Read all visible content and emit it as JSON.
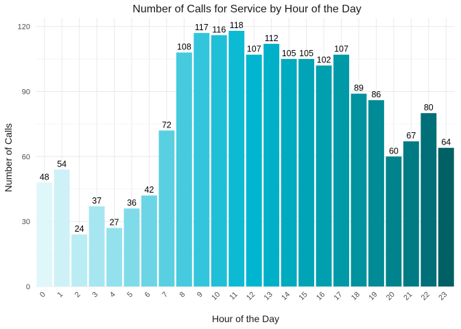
{
  "chart_data": {
    "type": "bar",
    "title": "Number of Calls for Service by Hour of the Day",
    "xlabel": "Hour of the Day",
    "ylabel": "Number of Calls",
    "categories": [
      "0",
      "1",
      "2",
      "3",
      "4",
      "5",
      "6",
      "7",
      "8",
      "9",
      "10",
      "11",
      "12",
      "13",
      "14",
      "15",
      "16",
      "17",
      "18",
      "19",
      "20",
      "21",
      "22",
      "23"
    ],
    "values": [
      48,
      54,
      24,
      37,
      27,
      36,
      42,
      72,
      108,
      117,
      116,
      118,
      107,
      112,
      105,
      105,
      102,
      107,
      89,
      86,
      60,
      67,
      80,
      64
    ],
    "data_labels": [
      "48",
      "54",
      "24",
      "37",
      "27",
      "36",
      "42",
      "72",
      "108",
      "117",
      "116",
      "118",
      "107",
      "112",
      "105",
      "105",
      "102",
      "107",
      "89",
      "86",
      "60",
      "67",
      "80",
      "64"
    ],
    "ylim": [
      0,
      124
    ],
    "yticks": [
      0,
      30,
      60,
      90,
      120
    ],
    "ytick_labels": [
      "0",
      "30",
      "60",
      "90",
      "120"
    ],
    "grid": true,
    "legend": "none",
    "colors": [
      "#e0f7fa",
      "#cdf1f6",
      "#b9ecf3",
      "#a6e6f0",
      "#93e1ec",
      "#80dbe9",
      "#6cd5e5",
      "#59d0e2",
      "#46cade",
      "#33c5db",
      "#20bfd8",
      "#0cbad4",
      "#00b5d0",
      "#00b0c8",
      "#00aabf",
      "#00a4b6",
      "#009faf",
      "#0099a8",
      "#00929f",
      "#008b96",
      "#00838c",
      "#007b83",
      "#006f77",
      "#006064"
    ],
    "background": "#ffffff",
    "grid_color": "#ebebeb"
  }
}
